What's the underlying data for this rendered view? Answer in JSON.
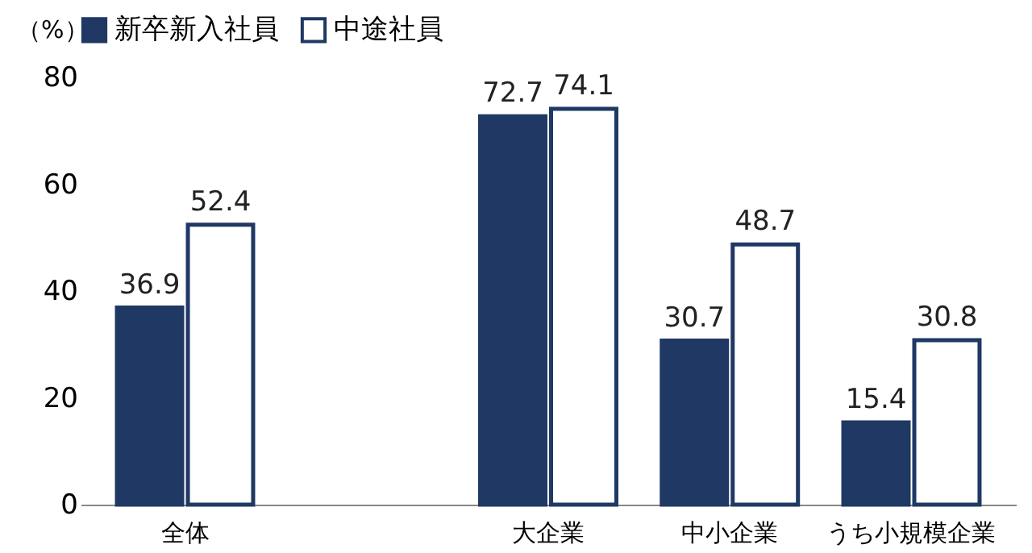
{
  "chart_data": {
    "type": "bar",
    "ylabel": "（%）",
    "categories": [
      "全体",
      null,
      "大企業",
      "中小企業",
      "うち小規模企業"
    ],
    "series": [
      {
        "name": "新卒新入社員",
        "color": "#1f3864",
        "values": [
          36.9,
          null,
          72.7,
          30.7,
          15.4
        ]
      },
      {
        "name": "中途社員",
        "color": "#ffffff",
        "values": [
          52.4,
          null,
          74.1,
          48.7,
          30.8
        ]
      }
    ],
    "ylim": [
      0,
      80
    ],
    "yticks": [
      0,
      20,
      40,
      60,
      80
    ],
    "grid": false,
    "legend": "top",
    "data_labels": true
  }
}
